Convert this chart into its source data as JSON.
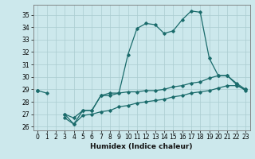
{
  "xlabel": "Humidex (Indice chaleur)",
  "bg_color": "#cce8ec",
  "grid_color": "#aaccd0",
  "line_color": "#1a6b6b",
  "x_values": [
    0,
    1,
    2,
    3,
    4,
    5,
    6,
    7,
    8,
    9,
    10,
    11,
    12,
    13,
    14,
    15,
    16,
    17,
    18,
    19,
    20,
    21,
    22,
    23
  ],
  "line1": [
    28.9,
    28.7,
    null,
    27.0,
    26.2,
    27.3,
    27.3,
    28.5,
    28.7,
    28.7,
    31.8,
    33.9,
    34.3,
    34.2,
    33.5,
    33.7,
    34.6,
    35.3,
    35.2,
    31.5,
    30.1,
    30.1,
    29.4,
    28.9
  ],
  "line2": [
    28.9,
    null,
    null,
    27.0,
    26.7,
    27.3,
    27.3,
    28.5,
    28.5,
    28.7,
    28.8,
    28.8,
    28.9,
    28.9,
    29.0,
    29.2,
    29.3,
    29.5,
    29.6,
    29.9,
    30.1,
    30.1,
    29.5,
    29.0
  ],
  "line3": [
    28.9,
    null,
    null,
    26.7,
    26.2,
    26.9,
    27.0,
    27.2,
    27.3,
    27.6,
    27.7,
    27.9,
    28.0,
    28.1,
    28.2,
    28.4,
    28.5,
    28.7,
    28.8,
    28.9,
    29.1,
    29.3,
    29.3,
    29.0
  ],
  "ylim": [
    25.7,
    35.8
  ],
  "xlim": [
    -0.5,
    23.5
  ],
  "yticks": [
    26,
    27,
    28,
    29,
    30,
    31,
    32,
    33,
    34,
    35
  ],
  "xticks": [
    0,
    1,
    2,
    3,
    4,
    5,
    6,
    7,
    8,
    9,
    10,
    11,
    12,
    13,
    14,
    15,
    16,
    17,
    18,
    19,
    20,
    21,
    22,
    23
  ],
  "tick_fontsize": 5.5,
  "xlabel_fontsize": 6.5
}
